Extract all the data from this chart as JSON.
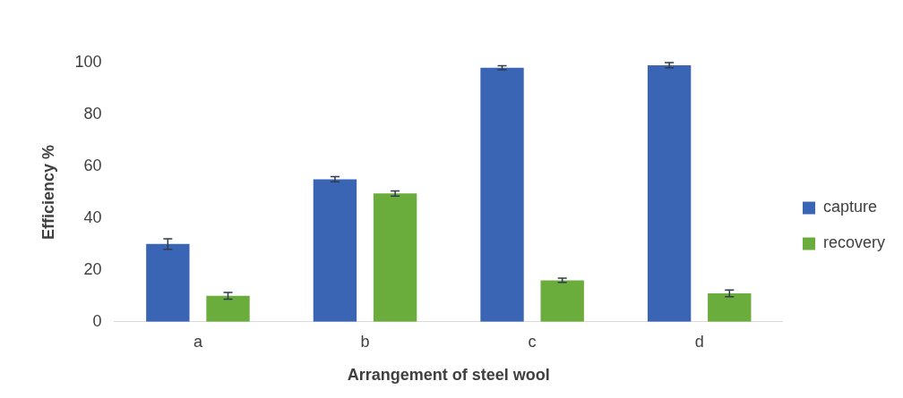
{
  "chart_data": {
    "type": "bar",
    "xlabel": "Arrangement of steel wool",
    "ylabel": "Efficiency %",
    "categories": [
      "a",
      "b",
      "c",
      "d"
    ],
    "series": [
      {
        "name": "capture",
        "color": "#3a64b4",
        "values": [
          30,
          55,
          98,
          99
        ],
        "errors": [
          2,
          1,
          0.8,
          1
        ]
      },
      {
        "name": "recovery",
        "color": "#6aad3c",
        "values": [
          10,
          49.5,
          16,
          11
        ],
        "errors": [
          1.3,
          1,
          0.8,
          1.3
        ]
      }
    ],
    "ylim": [
      0,
      100
    ],
    "yticks": [
      0,
      20,
      40,
      60,
      80,
      100
    ],
    "grid": false,
    "legend": "right"
  }
}
